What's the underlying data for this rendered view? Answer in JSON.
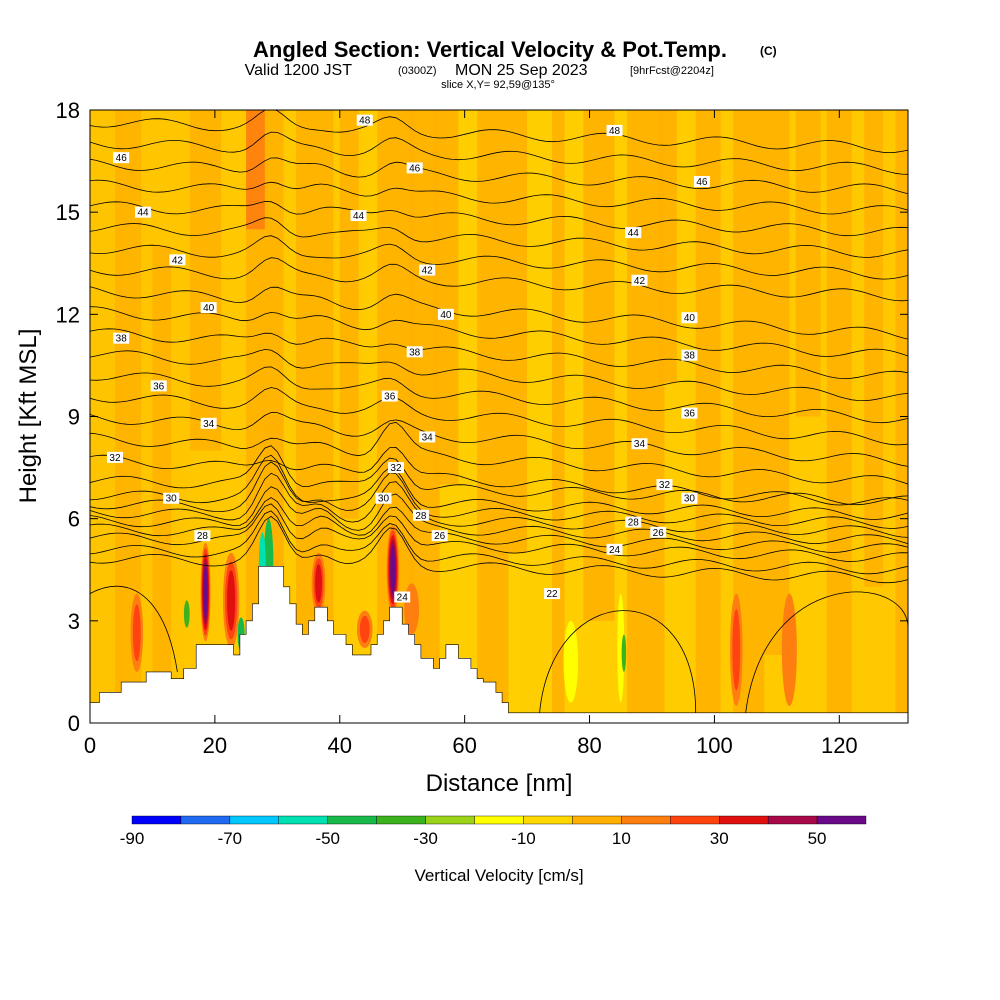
{
  "header": {
    "title": "Angled Section: Vertical Velocity & Pot.Temp.",
    "title_unit": "(C)",
    "valid_prefix": "Valid 1200 JST",
    "valid_utc": "(0300Z)",
    "valid_date": "MON 25 Sep 2023",
    "forecast_note": "[9hrFcst@2204z]",
    "slice": "slice X,Y= 92,59@135°"
  },
  "chart_data": {
    "type": "heatmap",
    "xlabel": "Distance [nm]",
    "ylabel": "Height [Kft MSL]",
    "xlim": [
      0,
      131
    ],
    "ylim": [
      0,
      18
    ],
    "xticks": [
      0,
      20,
      40,
      60,
      80,
      100,
      120
    ],
    "yticks": [
      0,
      3,
      6,
      9,
      12,
      15,
      18
    ],
    "colorbar": {
      "label": "Vertical Velocity [cm/s]",
      "tick_labels": [
        "-90",
        "-70",
        "-50",
        "-30",
        "-10",
        "10",
        "30",
        "50"
      ],
      "tick_values": [
        -90,
        -70,
        -50,
        -30,
        -10,
        10,
        30,
        50
      ],
      "bins": [
        {
          "from": -90,
          "to": -80,
          "color": "#0000ff"
        },
        {
          "from": -80,
          "to": -70,
          "color": "#1f6af0"
        },
        {
          "from": -70,
          "to": -60,
          "color": "#00c8ff"
        },
        {
          "from": -60,
          "to": -50,
          "color": "#00e0b0"
        },
        {
          "from": -50,
          "to": -40,
          "color": "#18b84a"
        },
        {
          "from": -40,
          "to": -30,
          "color": "#3cb21e"
        },
        {
          "from": -30,
          "to": -20,
          "color": "#9ad21a"
        },
        {
          "from": -20,
          "to": -10,
          "color": "#ffff00"
        },
        {
          "from": -10,
          "to": 0,
          "color": "#ffd800"
        },
        {
          "from": 0,
          "to": 10,
          "color": "#ffb000"
        },
        {
          "from": 10,
          "to": 20,
          "color": "#ff7e10"
        },
        {
          "from": 20,
          "to": 30,
          "color": "#ff4410"
        },
        {
          "from": 30,
          "to": 40,
          "color": "#e01010"
        },
        {
          "from": 40,
          "to": 50,
          "color": "#a80848"
        },
        {
          "from": 50,
          "to": 60,
          "color": "#6a0a8a"
        }
      ]
    },
    "terrain_kft": [
      [
        0,
        0.6
      ],
      [
        1.5,
        0.6
      ],
      [
        1.5,
        0.9
      ],
      [
        5,
        0.9
      ],
      [
        5,
        1.2
      ],
      [
        9,
        1.2
      ],
      [
        9,
        1.5
      ],
      [
        13,
        1.5
      ],
      [
        13,
        1.3
      ],
      [
        15,
        1.3
      ],
      [
        15,
        1.6
      ],
      [
        17,
        1.6
      ],
      [
        17,
        2.3
      ],
      [
        23,
        2.3
      ],
      [
        23,
        2.0
      ],
      [
        24,
        2.0
      ],
      [
        24,
        2.6
      ],
      [
        25,
        2.6
      ],
      [
        25,
        3.0
      ],
      [
        26,
        3.0
      ],
      [
        26,
        3.5
      ],
      [
        27,
        3.5
      ],
      [
        27,
        4.6
      ],
      [
        31,
        4.6
      ],
      [
        31,
        4.0
      ],
      [
        32,
        4.0
      ],
      [
        32,
        3.5
      ],
      [
        33,
        3.5
      ],
      [
        33,
        2.9
      ],
      [
        34,
        2.9
      ],
      [
        34,
        2.6
      ],
      [
        35,
        2.6
      ],
      [
        35,
        3.0
      ],
      [
        36,
        3.0
      ],
      [
        36,
        3.4
      ],
      [
        38,
        3.4
      ],
      [
        38,
        3.0
      ],
      [
        39,
        3.0
      ],
      [
        39,
        2.6
      ],
      [
        41,
        2.6
      ],
      [
        41,
        2.3
      ],
      [
        42,
        2.3
      ],
      [
        42,
        2.0
      ],
      [
        45,
        2.0
      ],
      [
        45,
        2.3
      ],
      [
        46,
        2.3
      ],
      [
        46,
        2.6
      ],
      [
        47,
        2.6
      ],
      [
        47,
        3.0
      ],
      [
        48,
        3.0
      ],
      [
        48,
        3.4
      ],
      [
        50,
        3.4
      ],
      [
        50,
        2.9
      ],
      [
        51,
        2.9
      ],
      [
        51,
        2.6
      ],
      [
        52,
        2.6
      ],
      [
        52,
        2.3
      ],
      [
        53,
        2.3
      ],
      [
        53,
        1.9
      ],
      [
        55,
        1.9
      ],
      [
        55,
        1.6
      ],
      [
        56,
        1.6
      ],
      [
        56,
        1.9
      ],
      [
        57,
        1.9
      ],
      [
        57,
        2.3
      ],
      [
        59,
        2.3
      ],
      [
        59,
        1.9
      ],
      [
        61,
        1.9
      ],
      [
        61,
        1.6
      ],
      [
        62,
        1.6
      ],
      [
        62,
        1.3
      ],
      [
        63,
        1.3
      ],
      [
        63,
        1.2
      ],
      [
        65,
        1.2
      ],
      [
        65,
        0.9
      ],
      [
        66,
        0.9
      ],
      [
        66,
        0.6
      ],
      [
        67,
        0.6
      ],
      [
        67,
        0.3
      ],
      [
        72,
        0.3
      ],
      [
        72,
        0.3
      ],
      [
        131,
        0.3
      ]
    ],
    "contour_labels": [
      {
        "text": "48",
        "x": 44,
        "y": 17.7
      },
      {
        "text": "48",
        "x": 84,
        "y": 17.4
      },
      {
        "text": "46",
        "x": 5,
        "y": 16.6
      },
      {
        "text": "46",
        "x": 52,
        "y": 16.3
      },
      {
        "text": "46",
        "x": 98,
        "y": 15.9
      },
      {
        "text": "44",
        "x": 8.5,
        "y": 15.0
      },
      {
        "text": "44",
        "x": 43,
        "y": 14.9
      },
      {
        "text": "44",
        "x": 87,
        "y": 14.4
      },
      {
        "text": "42",
        "x": 14,
        "y": 13.6
      },
      {
        "text": "42",
        "x": 54,
        "y": 13.3
      },
      {
        "text": "42",
        "x": 88,
        "y": 13.0
      },
      {
        "text": "40",
        "x": 19,
        "y": 12.2
      },
      {
        "text": "40",
        "x": 57,
        "y": 12.0
      },
      {
        "text": "40",
        "x": 96,
        "y": 11.9
      },
      {
        "text": "38",
        "x": 5,
        "y": 11.3
      },
      {
        "text": "38",
        "x": 52,
        "y": 10.9
      },
      {
        "text": "38",
        "x": 96,
        "y": 10.8
      },
      {
        "text": "36",
        "x": 11,
        "y": 9.9
      },
      {
        "text": "36",
        "x": 48,
        "y": 9.6
      },
      {
        "text": "36",
        "x": 96,
        "y": 9.1
      },
      {
        "text": "34",
        "x": 19,
        "y": 8.8
      },
      {
        "text": "34",
        "x": 54,
        "y": 8.4
      },
      {
        "text": "34",
        "x": 88,
        "y": 8.2
      },
      {
        "text": "32",
        "x": 4,
        "y": 7.8
      },
      {
        "text": "32",
        "x": 49,
        "y": 7.5
      },
      {
        "text": "32",
        "x": 92,
        "y": 7.0
      },
      {
        "text": "30",
        "x": 13,
        "y": 6.6
      },
      {
        "text": "30",
        "x": 47,
        "y": 6.6
      },
      {
        "text": "30",
        "x": 96,
        "y": 6.6
      },
      {
        "text": "28",
        "x": 18,
        "y": 5.5
      },
      {
        "text": "28",
        "x": 53,
        "y": 6.1
      },
      {
        "text": "28",
        "x": 87,
        "y": 5.9
      },
      {
        "text": "26",
        "x": 56,
        "y": 5.5
      },
      {
        "text": "26",
        "x": 91,
        "y": 5.6
      },
      {
        "text": "24",
        "x": 50,
        "y": 3.7
      },
      {
        "text": "24",
        "x": 84,
        "y": 5.1
      },
      {
        "text": "22",
        "x": 74,
        "y": 3.8
      }
    ]
  }
}
